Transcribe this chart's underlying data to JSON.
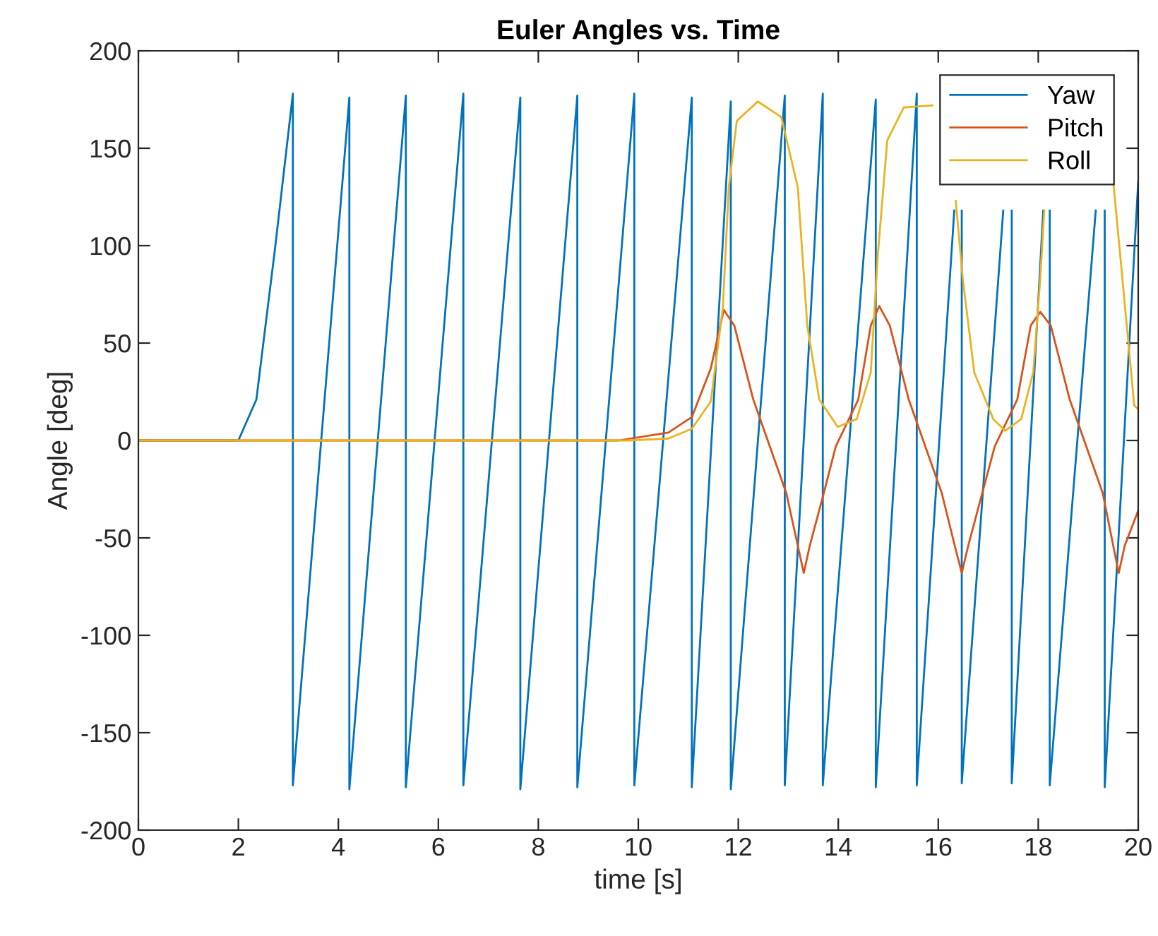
{
  "chart_data": {
    "type": "line",
    "title": "Euler Angles vs. Time",
    "xlabel": "time [s]",
    "ylabel": "Angle [deg]",
    "xlim": [
      0,
      20
    ],
    "ylim": [
      -200,
      200
    ],
    "xticks": [
      0,
      2,
      4,
      6,
      8,
      10,
      12,
      14,
      16,
      18,
      20
    ],
    "yticks": [
      -200,
      -150,
      -100,
      -50,
      0,
      50,
      100,
      150,
      200
    ],
    "grid": false,
    "legend": "top right",
    "line_style": "solid",
    "marker": "none",
    "series": [
      {
        "name": "Yaw",
        "color": "#0072bd",
        "x": [
          0,
          2,
          2.36,
          2.74,
          3.09,
          3.09,
          4.22,
          4.22,
          5.35,
          5.35,
          6.5,
          6.5,
          7.64,
          7.64,
          8.78,
          8.78,
          9.92,
          9.92,
          11.07,
          11.07,
          11.85,
          11.85,
          12.93,
          12.93,
          13.69,
          13.69,
          14.75,
          14.75,
          15.57,
          15.57,
          16.32,
          16.4,
          16.47,
          16.47,
          17.3,
          17.4,
          17.47,
          17.47,
          18.1,
          18.17,
          18.23,
          18.23,
          19.15,
          19.24,
          19.33,
          19.33,
          20
        ],
        "values": [
          0,
          0,
          21,
          100,
          178,
          -177,
          176,
          -179,
          177,
          -178,
          178,
          -177,
          176,
          -179,
          177,
          -178,
          178,
          -177,
          176,
          -178,
          174,
          -179,
          177,
          -177,
          178,
          -177,
          175,
          -178,
          178,
          -177,
          118,
          null,
          118,
          -176,
          118,
          null,
          118,
          -176,
          118,
          null,
          118,
          -177,
          118,
          null,
          118,
          -178,
          133
        ]
      },
      {
        "name": "Pitch",
        "color": "#d95319",
        "x": [
          0,
          9.6,
          10.6,
          11.07,
          11.45,
          11.71,
          11.92,
          12.3,
          12.63,
          12.96,
          13.19,
          13.31,
          13.43,
          13.71,
          13.95,
          14.4,
          14.65,
          14.82,
          15.03,
          15.41,
          15.74,
          16.07,
          16.33,
          16.47,
          16.6,
          16.88,
          17.13,
          17.58,
          17.85,
          18.04,
          18.25,
          18.63,
          18.96,
          19.29,
          19.5,
          19.61,
          19.73,
          20
        ],
        "values": [
          0,
          0,
          4,
          12,
          37,
          67,
          59,
          21,
          -3,
          -27,
          -54,
          -68,
          -54,
          -27,
          -3,
          21,
          59,
          69,
          59,
          21,
          -3,
          -27,
          -54,
          -68,
          -54,
          -27,
          -3,
          21,
          59,
          66,
          59,
          21,
          -3,
          -27,
          -54,
          -68,
          -54,
          -36
        ]
      },
      {
        "name": "Roll",
        "color": "#edb120",
        "x": [
          0,
          9.8,
          10.6,
          11.07,
          11.45,
          11.69,
          11.81,
          11.97,
          12.39,
          12.86,
          13.19,
          13.38,
          13.62,
          13.99,
          14.37,
          14.65,
          14.79,
          14.98,
          15.31,
          15.88,
          16.2,
          16.35,
          16.49,
          16.72,
          17.1,
          17.34,
          17.66,
          17.9,
          18.04,
          18.12,
          18.8,
          19.5,
          19.64,
          19.92,
          20
        ],
        "values": [
          0,
          0,
          1,
          6,
          20,
          68,
          130,
          164,
          174,
          166,
          130,
          59,
          21,
          7,
          11,
          35,
          95,
          154,
          171,
          172,
          null,
          123,
          83,
          35,
          11,
          5,
          11,
          35,
          83,
          118,
          null,
          133,
          95,
          18,
          16
        ]
      }
    ]
  }
}
